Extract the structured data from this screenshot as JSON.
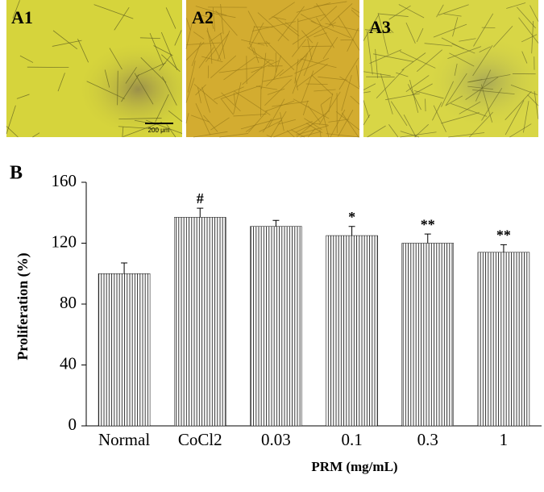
{
  "images": [
    {
      "label": "A1"
    },
    {
      "label": "A2"
    },
    {
      "label": "A3"
    }
  ],
  "scale_bar": "200 μm",
  "panel_label": "B",
  "chart_data": {
    "type": "bar",
    "categories": [
      "Normal",
      "CoCl2",
      "0.03",
      "0.1",
      "0.3",
      "1"
    ],
    "values": [
      100,
      137,
      131,
      125,
      120,
      114
    ],
    "errors": [
      7,
      6,
      4,
      6,
      6,
      5
    ],
    "annotations": [
      null,
      "#",
      null,
      "*",
      "**",
      "**"
    ],
    "color": "#000000",
    "ylabel": "Proliferation (%)",
    "xlabel": "PRM (mg/mL)",
    "ylim": [
      0,
      160
    ],
    "yticks": [
      0,
      40,
      80,
      120,
      160
    ]
  }
}
